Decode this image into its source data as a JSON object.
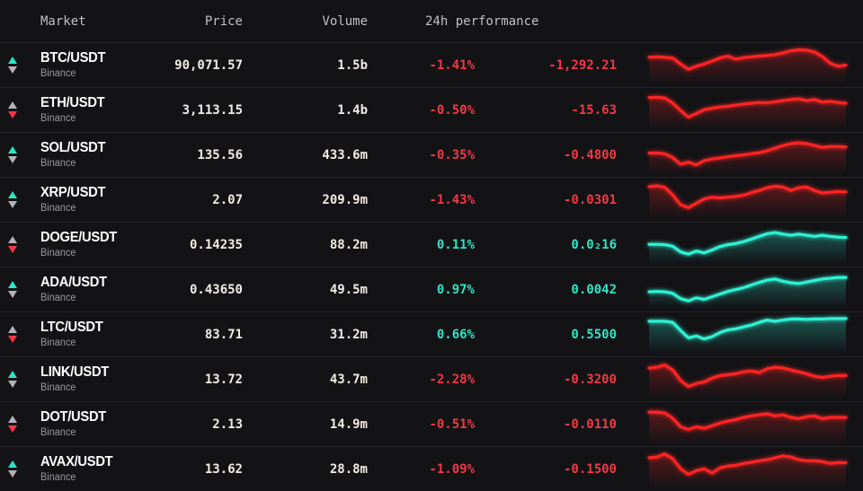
{
  "table": {
    "columns": {
      "market": "Market",
      "price": "Price",
      "volume": "Volume",
      "performance": "24h performance"
    },
    "rows": [
      {
        "symbol": "BTC/USDT",
        "exchange": "Binance",
        "price": "90,071.57",
        "volume": "1.5b",
        "change_pct": "-1.41%",
        "change_abs": "-1,292.21",
        "trend": "down",
        "tick": "up",
        "sparkline": [
          28,
          27,
          28,
          30,
          46,
          60,
          52,
          46,
          38,
          30,
          25,
          33,
          29,
          27,
          25,
          23,
          21,
          17,
          11,
          8,
          9,
          14,
          26,
          44,
          52,
          49
        ]
      },
      {
        "symbol": "ETH/USDT",
        "exchange": "Binance",
        "price": "3,113.15",
        "volume": "1.4b",
        "change_pct": "-0.50%",
        "change_abs": "-15.63",
        "trend": "down",
        "tick": "down",
        "sparkline": [
          16,
          15,
          17,
          30,
          50,
          68,
          58,
          48,
          44,
          41,
          39,
          36,
          33,
          31,
          29,
          30,
          27,
          24,
          21,
          19,
          24,
          21,
          28,
          26,
          29,
          31
        ]
      },
      {
        "symbol": "SOL/USDT",
        "exchange": "Binance",
        "price": "135.56",
        "volume": "433.6m",
        "change_pct": "-0.35%",
        "change_abs": "-0.4800",
        "trend": "down",
        "tick": "up",
        "sparkline": [
          44,
          44,
          46,
          56,
          74,
          68,
          76,
          64,
          60,
          57,
          54,
          51,
          49,
          46,
          43,
          38,
          31,
          24,
          19,
          17,
          19,
          24,
          29,
          27,
          27,
          28
        ]
      },
      {
        "symbol": "XRP/USDT",
        "exchange": "Binance",
        "price": "2.07",
        "volume": "209.9m",
        "change_pct": "-1.43%",
        "change_abs": "-0.0301",
        "trend": "down",
        "tick": "up",
        "sparkline": [
          14,
          12,
          16,
          36,
          62,
          70,
          58,
          47,
          42,
          44,
          42,
          40,
          37,
          30,
          24,
          17,
          13,
          15,
          24,
          17,
          15,
          24,
          31,
          29,
          27,
          28
        ]
      },
      {
        "symbol": "DOGE/USDT",
        "exchange": "Binance",
        "price": "0.14235",
        "volume": "88.2m",
        "change_pct": "0.11%",
        "change_abs": "0.0₂16",
        "trend": "up",
        "tick": "down",
        "sparkline": [
          48,
          48,
          49,
          53,
          68,
          74,
          66,
          71,
          63,
          54,
          49,
          46,
          41,
          34,
          27,
          20,
          17,
          21,
          24,
          21,
          24,
          27,
          24,
          27,
          29,
          30
        ]
      },
      {
        "symbol": "ADA/USDT",
        "exchange": "Binance",
        "price": "0.43650",
        "volume": "49.5m",
        "change_pct": "0.97%",
        "change_abs": "0.0042",
        "trend": "up",
        "tick": "up",
        "sparkline": [
          55,
          54,
          55,
          59,
          73,
          79,
          71,
          75,
          68,
          61,
          54,
          49,
          44,
          37,
          30,
          24,
          21,
          27,
          31,
          33,
          29,
          25,
          21,
          19,
          17,
          17
        ]
      },
      {
        "symbol": "LTC/USDT",
        "exchange": "Binance",
        "price": "83.71",
        "volume": "31.2m",
        "change_pct": "0.66%",
        "change_abs": "0.5500",
        "trend": "up",
        "tick": "down",
        "sparkline": [
          14,
          14,
          14,
          17,
          38,
          58,
          53,
          61,
          55,
          44,
          37,
          34,
          29,
          24,
          17,
          11,
          14,
          11,
          8,
          8,
          9,
          8,
          8,
          7,
          7,
          7
        ]
      },
      {
        "symbol": "LINK/USDT",
        "exchange": "Binance",
        "price": "13.72",
        "volume": "43.7m",
        "change_pct": "-2.28%",
        "change_abs": "-0.3200",
        "trend": "down",
        "tick": "up",
        "sparkline": [
          19,
          17,
          11,
          24,
          52,
          68,
          60,
          56,
          46,
          39,
          37,
          34,
          29,
          27,
          31,
          21,
          17,
          19,
          24,
          29,
          34,
          41,
          44,
          41,
          39,
          39
        ]
      },
      {
        "symbol": "DOT/USDT",
        "exchange": "Binance",
        "price": "2.13",
        "volume": "14.9m",
        "change_pct": "-0.51%",
        "change_abs": "-0.0110",
        "trend": "down",
        "tick": "down",
        "sparkline": [
          17,
          17,
          19,
          33,
          56,
          63,
          56,
          60,
          53,
          46,
          41,
          37,
          31,
          27,
          24,
          21,
          27,
          24,
          31,
          34,
          29,
          27,
          34,
          31,
          31,
          31
        ]
      },
      {
        "symbol": "AVAX/USDT",
        "exchange": "Binance",
        "price": "13.62",
        "volume": "28.8m",
        "change_pct": "-1.09%",
        "change_abs": "-0.1500",
        "trend": "down",
        "tick": "up",
        "sparkline": [
          19,
          17,
          9,
          21,
          48,
          63,
          53,
          48,
          60,
          46,
          41,
          39,
          34,
          31,
          27,
          24,
          19,
          14,
          17,
          24,
          27,
          27,
          29,
          34,
          32,
          32
        ]
      }
    ]
  },
  "colors": {
    "background": "#131316",
    "divider": "#232329",
    "header_text": "#c3bec6",
    "text_primary": "#f1ece2",
    "text_secondary": "#9b97a0",
    "accent_up": "#2de5c6",
    "accent_down": "#f23843",
    "spark_up": "#2ff1d3",
    "spark_down": "#fb2424",
    "neutral_arrow": "#b7b0b8"
  }
}
